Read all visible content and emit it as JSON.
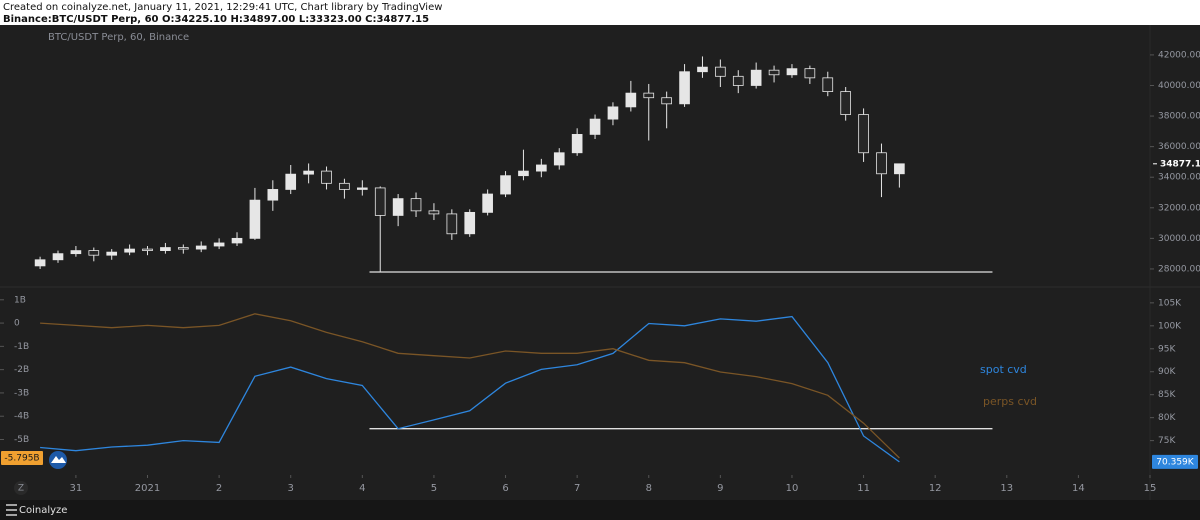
{
  "header": {
    "line1": "Created on coinalyze.net, January 11, 2021, 12:29:41 UTC, Chart library by TradingView",
    "line2": "Binance:BTC/USDT Perp, 60 O:34225.10 H:34897.00 L:33323.00 C:34877.15"
  },
  "footer": {
    "badge": "Z",
    "brand": "Coinalyze"
  },
  "chart_data": [
    {
      "type": "candlestick",
      "title": "BTC/USDT Perp, 60, Binance",
      "up_color": "#e6e6e6",
      "down_color": "#262626",
      "grid": false,
      "xlim": [
        -1.06,
        15.0
      ],
      "ylim": [
        26950,
        43760
      ],
      "yticks": [
        {
          "value": 28000,
          "label": "28000.00"
        },
        {
          "value": 30000,
          "label": "30000.00"
        },
        {
          "value": 32000,
          "label": "32000.00"
        },
        {
          "value": 34000,
          "label": "34000.00"
        },
        {
          "value": 36000,
          "label": "36000.00"
        },
        {
          "value": 38000,
          "label": "38000.00"
        },
        {
          "value": 40000,
          "label": "40000.00"
        },
        {
          "value": 42000,
          "label": "42000.00"
        }
      ],
      "x": [
        -0.5,
        -0.25,
        0,
        0.25,
        0.5,
        0.75,
        1,
        1.25,
        1.5,
        1.75,
        2,
        2.25,
        2.5,
        2.75,
        3,
        3.25,
        3.5,
        3.75,
        4,
        4.25,
        4.5,
        4.75,
        5,
        5.25,
        5.5,
        5.75,
        6,
        6.25,
        6.5,
        6.75,
        7,
        7.25,
        7.5,
        7.75,
        8,
        8.25,
        8.5,
        8.75,
        9,
        9.25,
        9.5,
        9.75,
        10,
        10.25,
        10.5,
        10.75,
        11,
        11.25,
        11.5
      ],
      "candles": [
        [
          28200,
          28800,
          28000,
          28600
        ],
        [
          28600,
          29200,
          28400,
          29000
        ],
        [
          29000,
          29500,
          28800,
          29200
        ],
        [
          29200,
          29400,
          28500,
          28900
        ],
        [
          28900,
          29300,
          28600,
          29100
        ],
        [
          29100,
          29600,
          28900,
          29300
        ],
        [
          29300,
          29500,
          28900,
          29200
        ],
        [
          29200,
          29700,
          29000,
          29400
        ],
        [
          29400,
          29600,
          29000,
          29300
        ],
        [
          29300,
          29800,
          29100,
          29500
        ],
        [
          29500,
          30000,
          29300,
          29700
        ],
        [
          29700,
          30400,
          29500,
          30000
        ],
        [
          30000,
          33300,
          29900,
          32500
        ],
        [
          32500,
          33800,
          31800,
          33200
        ],
        [
          33200,
          34800,
          32900,
          34200
        ],
        [
          34200,
          34900,
          33600,
          34400
        ],
        [
          34400,
          34700,
          33200,
          33600
        ],
        [
          33600,
          33900,
          32600,
          33200
        ],
        [
          33200,
          33800,
          32800,
          33300
        ],
        [
          33300,
          33400,
          27800,
          31500
        ],
        [
          31500,
          32900,
          30800,
          32600
        ],
        [
          32600,
          33000,
          31400,
          31800
        ],
        [
          31800,
          32300,
          31200,
          31600
        ],
        [
          31600,
          31900,
          29900,
          30300
        ],
        [
          30300,
          31900,
          30100,
          31700
        ],
        [
          31700,
          33200,
          31500,
          32900
        ],
        [
          32900,
          34400,
          32700,
          34100
        ],
        [
          34100,
          35800,
          33800,
          34400
        ],
        [
          34400,
          35200,
          34000,
          34800
        ],
        [
          34800,
          35900,
          34500,
          35600
        ],
        [
          35600,
          37200,
          35400,
          36800
        ],
        [
          36800,
          38100,
          36500,
          37800
        ],
        [
          37800,
          38900,
          37400,
          38600
        ],
        [
          38600,
          40300,
          38300,
          39500
        ],
        [
          39500,
          40100,
          36400,
          39200
        ],
        [
          39200,
          39600,
          37200,
          38800
        ],
        [
          38800,
          41400,
          38600,
          40900
        ],
        [
          40900,
          41900,
          40500,
          41200
        ],
        [
          41200,
          41700,
          39900,
          40600
        ],
        [
          40600,
          41000,
          39500,
          40000
        ],
        [
          40000,
          41500,
          39800,
          41000
        ],
        [
          41000,
          41300,
          40200,
          40700
        ],
        [
          40700,
          41400,
          40500,
          41100
        ],
        [
          41100,
          41300,
          40100,
          40500
        ],
        [
          40500,
          40900,
          39300,
          39600
        ],
        [
          39600,
          39900,
          37700,
          38100
        ],
        [
          38100,
          38500,
          35000,
          35600
        ],
        [
          35600,
          36200,
          32700,
          34225.1
        ],
        [
          34225.1,
          34897,
          33323,
          34877.15
        ]
      ],
      "levels": [
        {
          "value": 27800,
          "x": [
            4.1,
            12.8
          ],
          "color": "#e0e0e0"
        }
      ]
    },
    {
      "type": "line",
      "legend": "right",
      "grid": false,
      "xlim": [
        -1.06,
        15.0
      ],
      "xticks": [
        {
          "value": 0,
          "label": "31"
        },
        {
          "value": 1,
          "label": "2021"
        },
        2,
        3,
        4,
        5,
        6,
        7,
        8,
        9,
        10,
        11,
        12,
        13,
        14,
        15
      ],
      "ylim": [
        -6.31,
        1.42
      ],
      "yticks": [
        {
          "value": 1,
          "label": "1B"
        },
        0,
        {
          "value": -1,
          "label": "-1B"
        },
        {
          "value": -2,
          "label": "-2B"
        },
        {
          "value": -3,
          "label": "-3B"
        },
        {
          "value": -4,
          "label": "-4B"
        },
        {
          "value": -5,
          "label": "-5B"
        }
      ],
      "y2lim": [
        68.6,
        107.8
      ],
      "y2ticks": [
        {
          "value": 75,
          "label": "75K"
        },
        {
          "value": 80,
          "label": "80K"
        },
        {
          "value": 85,
          "label": "85K"
        },
        {
          "value": 90,
          "label": "90K"
        },
        {
          "value": 95,
          "label": "95K"
        },
        {
          "value": 100,
          "label": "100K"
        },
        {
          "value": 105,
          "label": "105K"
        }
      ],
      "x": [
        -0.5,
        0,
        0.5,
        1,
        1.5,
        2,
        2.5,
        3,
        3.5,
        4,
        4.5,
        5,
        5.5,
        6,
        6.5,
        7,
        7.5,
        8,
        8.5,
        9,
        9.5,
        10,
        10.5,
        11,
        11.5
      ],
      "series": [
        {
          "name": "spot cvd",
          "color": "#2e86de",
          "axis": "y2",
          "last_label": "70.359K",
          "values": [
            73.5,
            72.8,
            73.6,
            74,
            75,
            74.6,
            89,
            91,
            88.5,
            87,
            77.6,
            79.5,
            81.5,
            87.5,
            90.5,
            91.5,
            94,
            100.5,
            100,
            101.5,
            101,
            102,
            92,
            76,
            70.359
          ]
        },
        {
          "name": "perps cvd",
          "color": "#7a5526",
          "axis": "y",
          "last_label": "-5.795B",
          "values": [
            0,
            -0.1,
            -0.2,
            -0.1,
            -0.2,
            -0.1,
            0.4,
            0.1,
            -0.4,
            -0.8,
            -1.3,
            -1.4,
            -1.5,
            -1.2,
            -1.3,
            -1.3,
            -1.1,
            -1.6,
            -1.7,
            -2.1,
            -2.3,
            -2.6,
            -3.1,
            -4.3,
            -5.795
          ]
        }
      ],
      "levels": [
        {
          "value": 77.6,
          "axis": "y2",
          "x": [
            4.1,
            12.8
          ],
          "color": "#e0e0e0"
        }
      ]
    }
  ]
}
